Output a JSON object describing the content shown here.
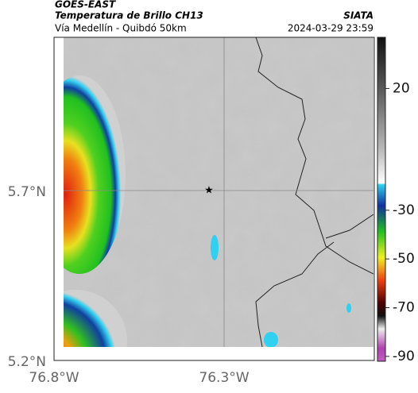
{
  "header": {
    "source": "GOES-EAST",
    "title": "Temperatura de Brillo CH13",
    "subtitle": "Vía Medellín - Quibdó 50km",
    "org": "SIATA",
    "datetime": "2024-03-29 23:59"
  },
  "map": {
    "lat_labels": [
      "5.7°N",
      "5.2°N"
    ],
    "lon_labels": [
      "76.8°W",
      "76.3°W"
    ]
  },
  "colorbar": {
    "limits": [
      -92,
      41
    ],
    "ticks": [
      20,
      -30,
      -50,
      -70,
      -90
    ]
  }
}
